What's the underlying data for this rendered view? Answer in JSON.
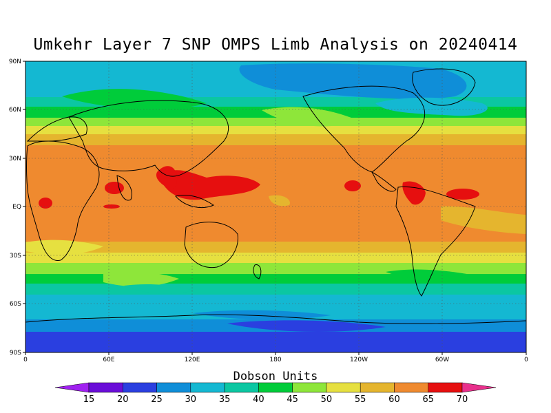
{
  "title": "Umkehr Layer 7 SNP OMPS Limb Analysis on 20240414",
  "map": {
    "projection": "cylindrical equidistant",
    "lon_labels": [
      "0",
      "60E",
      "120E",
      "180",
      "120W",
      "60W",
      "0"
    ],
    "lat_labels": [
      "90N",
      "60N",
      "30N",
      "EQ",
      "30S",
      "60S",
      "90S"
    ],
    "lon_range": [
      0,
      360
    ],
    "lat_range": [
      -90,
      90
    ],
    "gridlines": "dotted"
  },
  "colorbar": {
    "title": "Dobson Units",
    "levels": [
      "15",
      "20",
      "25",
      "30",
      "35",
      "40",
      "45",
      "50",
      "55",
      "60",
      "65",
      "70"
    ],
    "colors": [
      "#a020f0",
      "#6a0dd8",
      "#2a3fe0",
      "#0f8ed8",
      "#14b8d2",
      "#0bc7a2",
      "#00cc3a",
      "#8ee63a",
      "#e6e040",
      "#e5b52e",
      "#ef8a2f",
      "#e60f0f",
      "#e8308c"
    ],
    "extend": "both"
  }
}
